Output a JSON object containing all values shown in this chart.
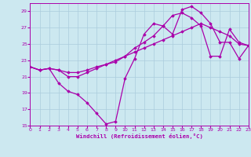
{
  "xlabel": "Windchill (Refroidissement éolien,°C)",
  "background_color": "#cce8f0",
  "grid_color": "#aaccdd",
  "line_color": "#aa00aa",
  "xlim": [
    0,
    23
  ],
  "ylim": [
    15,
    30
  ],
  "yticks": [
    15,
    17,
    19,
    21,
    23,
    25,
    27,
    29
  ],
  "xticks": [
    0,
    1,
    2,
    3,
    4,
    5,
    6,
    7,
    8,
    9,
    10,
    11,
    12,
    13,
    14,
    15,
    16,
    17,
    18,
    19,
    20,
    21,
    22,
    23
  ],
  "line1_x": [
    0,
    1,
    2,
    3,
    4,
    5,
    6,
    7,
    8,
    9,
    10,
    11,
    12,
    13,
    14,
    15,
    16,
    17,
    18,
    19,
    20,
    21,
    22,
    23
  ],
  "line1_y": [
    22.2,
    21.8,
    22.0,
    20.2,
    19.2,
    18.8,
    17.8,
    16.5,
    15.2,
    15.5,
    20.8,
    23.2,
    26.2,
    27.5,
    27.2,
    26.2,
    29.2,
    29.6,
    28.8,
    27.5,
    25.2,
    25.2,
    23.2,
    24.8
  ],
  "line2_x": [
    0,
    1,
    2,
    3,
    4,
    5,
    6,
    7,
    8,
    9,
    10,
    11,
    12,
    13,
    14,
    15,
    16,
    17,
    18,
    19,
    20,
    21,
    22,
    23
  ],
  "line2_y": [
    22.2,
    21.8,
    22.0,
    21.8,
    21.0,
    21.0,
    21.5,
    22.0,
    22.5,
    22.8,
    23.5,
    24.5,
    25.2,
    26.0,
    27.2,
    28.5,
    28.8,
    28.2,
    27.2,
    23.5,
    23.5,
    26.8,
    25.2,
    24.8
  ],
  "line3_x": [
    0,
    1,
    2,
    3,
    4,
    5,
    6,
    7,
    8,
    9,
    10,
    11,
    12,
    13,
    14,
    15,
    16,
    17,
    18,
    19,
    20,
    21,
    22,
    23
  ],
  "line3_y": [
    22.2,
    21.8,
    22.0,
    21.8,
    21.5,
    21.5,
    21.8,
    22.2,
    22.5,
    23.0,
    23.5,
    24.0,
    24.5,
    25.0,
    25.5,
    26.0,
    26.5,
    27.0,
    27.5,
    27.0,
    26.5,
    26.0,
    25.0,
    24.8
  ]
}
